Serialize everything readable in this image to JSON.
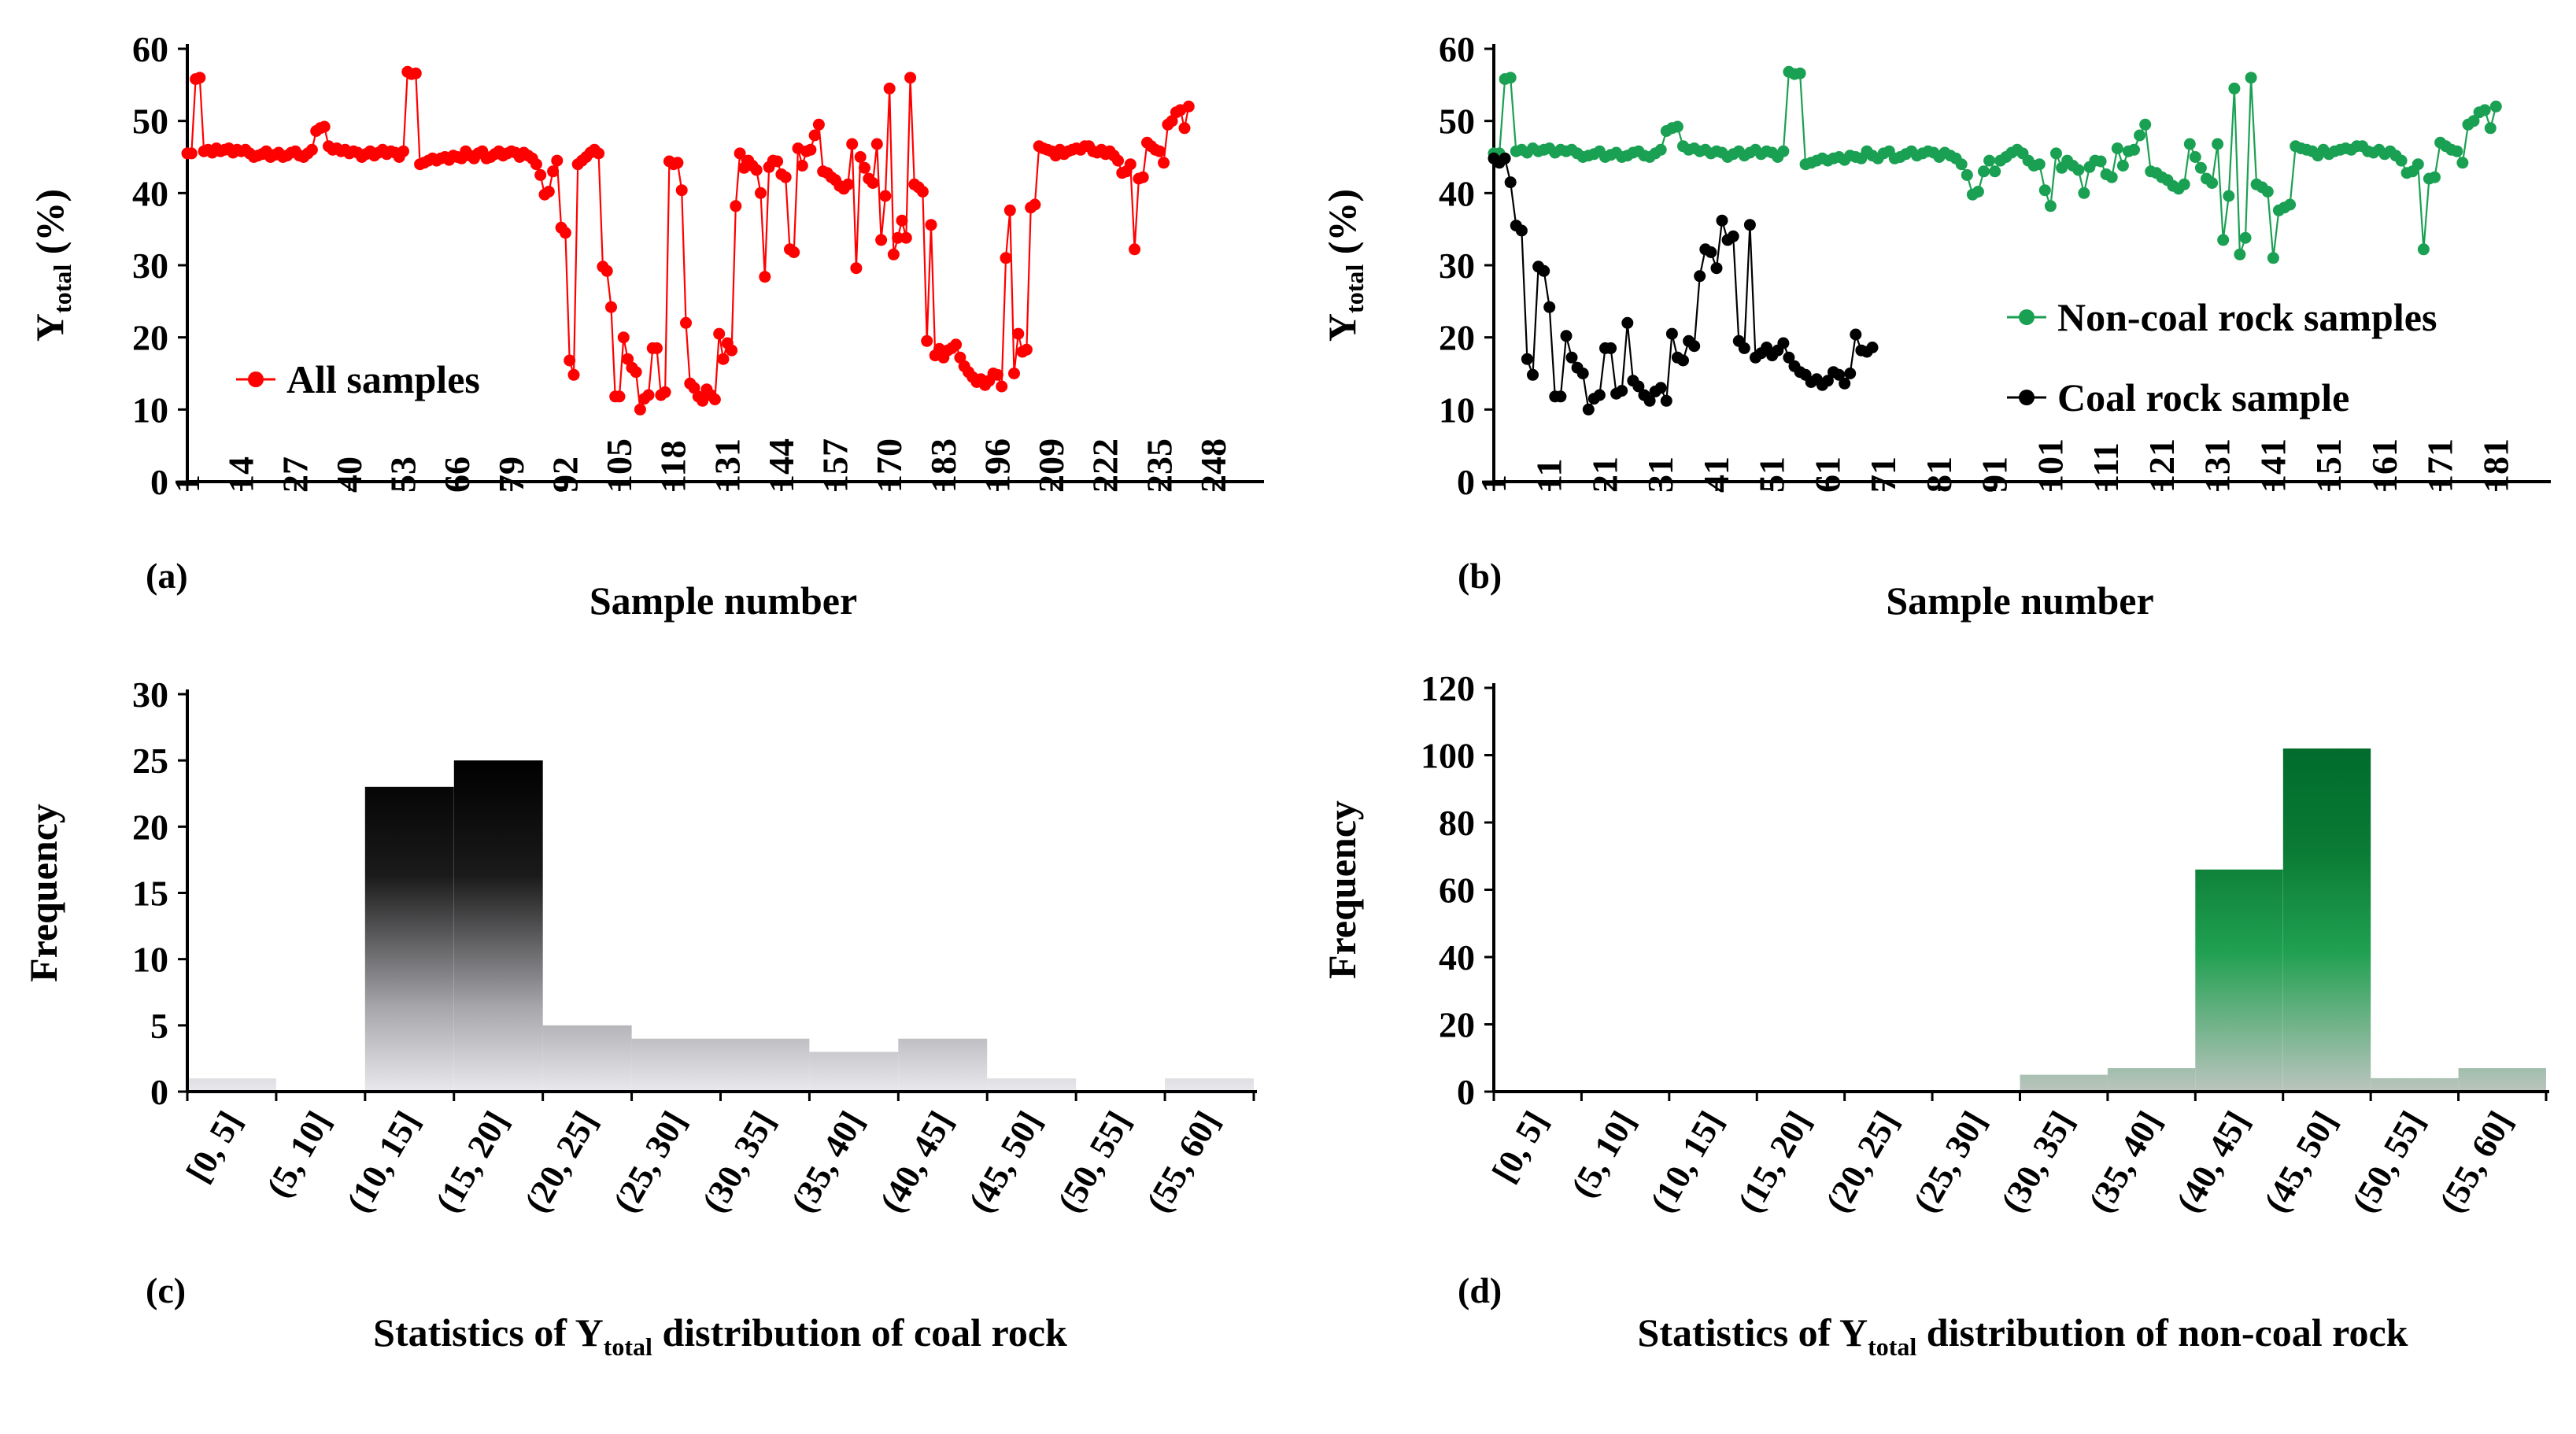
{
  "colors": {
    "red": "#ff0000",
    "green": "#1aa052",
    "black": "#000000",
    "dark_green": "#006b2d",
    "light_gray": "#e8e8ec",
    "gray_green": "#b9c4bd"
  },
  "chart_data": [
    {
      "id": "a",
      "type": "line",
      "panel_label": "(a)",
      "xlabel": "Sample number",
      "ylabel_main": "Y",
      "ylabel_sub": "total",
      "ylabel_unit": " (%)",
      "xlim": [
        1,
        259
      ],
      "ylim": [
        0,
        60
      ],
      "yticks": [
        "0",
        "10",
        "20",
        "30",
        "40",
        "50",
        "60"
      ],
      "xticks": [
        "1",
        "14",
        "27",
        "40",
        "53",
        "66",
        "79",
        "92",
        "105",
        "118",
        "131",
        "144",
        "157",
        "170",
        "183",
        "196",
        "209",
        "222",
        "235",
        "248"
      ],
      "xtick_values": [
        1,
        14,
        27,
        40,
        53,
        66,
        79,
        92,
        105,
        118,
        131,
        144,
        157,
        170,
        183,
        196,
        209,
        222,
        235,
        248
      ],
      "series": [
        {
          "name": "All samples",
          "color": "#ff0000",
          "values": [
            45.5,
            45.5,
            55.8,
            56,
            45.8,
            46,
            45.6,
            46.2,
            45.8,
            46,
            46.2,
            45.6,
            46,
            45.8,
            46,
            45.5,
            45,
            45.2,
            45.4,
            45.8,
            45,
            45.3,
            45.6,
            45,
            45.2,
            45.6,
            45.8,
            45.2,
            45,
            45.5,
            46,
            48.6,
            49,
            49.2,
            46.5,
            46,
            46.2,
            45.8,
            46,
            45.5,
            45.8,
            45.6,
            45,
            45.4,
            45.8,
            45.2,
            45.6,
            46,
            45.4,
            45.8,
            45.6,
            45,
            45.8,
            56.8,
            56.5,
            56.6,
            44,
            44.2,
            44.5,
            44.8,
            44.5,
            44.8,
            45,
            44.6,
            45.2,
            45,
            44.8,
            45.8,
            45.2,
            44.8,
            45.5,
            45.8,
            44.8,
            45,
            45.4,
            45.8,
            45.2,
            45.5,
            45.8,
            45.6,
            45,
            45.6,
            45.2,
            44.8,
            44,
            42.5,
            39.8,
            40.2,
            43,
            44.5,
            35.2,
            34.5,
            16.8,
            14.8,
            44,
            44.5,
            45,
            45.6,
            46,
            45.5,
            29.8,
            29.2,
            24.2,
            11.8,
            11.8,
            20,
            17,
            15.8,
            15.2,
            10,
            11.5,
            12,
            18.5,
            18.5,
            12,
            12.4,
            44.4,
            44,
            44.2,
            40.4,
            22,
            13.6,
            13,
            11.8,
            11.2,
            12.8,
            12,
            11.4,
            20.5,
            17,
            19.2,
            18.2,
            38.2,
            45.5,
            43.5,
            44.5,
            43.8,
            43.2,
            40,
            28.4,
            43.6,
            44.5,
            44.4,
            42.6,
            42.2,
            32.2,
            31.8,
            46.2,
            43.8,
            45.8,
            46,
            48,
            49.5,
            43,
            42.8,
            42.2,
            41.8,
            41,
            40.6,
            41.2,
            46.8,
            29.6,
            45,
            43.5,
            42,
            41.4,
            46.8,
            33.5,
            39.6,
            54.5,
            31.5,
            33.8,
            36.2,
            33.8,
            56,
            41.2,
            40.8,
            40.2,
            19.5,
            35.6,
            17.5,
            18.4,
            17.2,
            18.2,
            18.5,
            19,
            17.2,
            16,
            15.2,
            14.5,
            13.8,
            14.2,
            13.4,
            14,
            15,
            14.8,
            13.2,
            31,
            37.6,
            15,
            20.5,
            18,
            18.3,
            38,
            38.4,
            46.5,
            46.2,
            46,
            45.8,
            45.2,
            46,
            45.4,
            45.8,
            46,
            46.2,
            46,
            46.5,
            46.5,
            45.8,
            45.6,
            46,
            45.4,
            45.8,
            45.2,
            44.5,
            42.8,
            43,
            44,
            32.2,
            42,
            42.2,
            47,
            46.5,
            46,
            45.8,
            44.2,
            49.5,
            50,
            51.2,
            51.5,
            49,
            52
          ]
        }
      ]
    },
    {
      "id": "b",
      "type": "line",
      "panel_label": "(b)",
      "xlabel": "Sample number",
      "ylabel_main": "Y",
      "ylabel_sub": "total",
      "ylabel_unit": " (%)",
      "xlim": [
        1,
        190
      ],
      "ylim": [
        0,
        60
      ],
      "yticks": [
        "0",
        "10",
        "20",
        "30",
        "40",
        "50",
        "60"
      ],
      "xticks": [
        "1",
        "11",
        "21",
        "31",
        "41",
        "51",
        "61",
        "71",
        "81",
        "91",
        "101",
        "111",
        "121",
        "131",
        "141",
        "151",
        "161",
        "171",
        "181"
      ],
      "xtick_values": [
        1,
        11,
        21,
        31,
        41,
        51,
        61,
        71,
        81,
        91,
        101,
        111,
        121,
        131,
        141,
        151,
        161,
        171,
        181
      ],
      "series": [
        {
          "name": "Non-coal rock samples",
          "color": "#1aa052",
          "values": [
            45.5,
            45.5,
            55.8,
            56,
            45.8,
            46,
            45.6,
            46.2,
            45.8,
            46,
            46.2,
            45.6,
            46,
            45.8,
            46,
            45.5,
            45,
            45.2,
            45.4,
            45.8,
            45,
            45.3,
            45.6,
            45,
            45.2,
            45.6,
            45.8,
            45.2,
            45,
            45.5,
            46,
            48.6,
            49,
            49.2,
            46.5,
            46,
            46.2,
            45.8,
            46,
            45.5,
            45.8,
            45.6,
            45,
            45.4,
            45.8,
            45.2,
            45.6,
            46,
            45.4,
            45.8,
            45.6,
            45,
            45.8,
            56.8,
            56.5,
            56.6,
            44,
            44.2,
            44.5,
            44.8,
            44.5,
            44.8,
            45,
            44.6,
            45.2,
            45,
            44.8,
            45.8,
            45.2,
            44.8,
            45.5,
            45.8,
            44.8,
            45,
            45.4,
            45.8,
            45.2,
            45.5,
            45.8,
            45.6,
            45,
            45.6,
            45.2,
            44.8,
            44,
            42.5,
            39.8,
            40.2,
            43,
            44.5,
            43,
            44.5,
            45,
            45.6,
            46,
            45.5,
            44.5,
            43.8,
            44,
            40.4,
            38.2,
            45.5,
            43.5,
            44.5,
            43.8,
            43.2,
            40,
            43.6,
            44.5,
            44.4,
            42.6,
            42.2,
            46.2,
            43.8,
            45.8,
            46,
            48,
            49.5,
            43,
            42.8,
            42.2,
            41.8,
            41,
            40.6,
            41.2,
            46.8,
            45,
            43.5,
            42,
            41.4,
            46.8,
            33.5,
            39.6,
            54.5,
            31.5,
            33.8,
            56,
            41.2,
            40.8,
            40.2,
            31,
            37.6,
            38,
            38.4,
            46.5,
            46.2,
            46,
            45.8,
            45.2,
            46,
            45.4,
            45.8,
            46,
            46.2,
            46,
            46.5,
            46.5,
            45.8,
            45.6,
            46,
            45.4,
            45.8,
            45.2,
            44.5,
            42.8,
            43,
            44,
            32.2,
            42,
            42.2,
            47,
            46.5,
            46,
            45.8,
            44.2,
            49.5,
            50,
            51.2,
            51.5,
            49,
            52
          ]
        },
        {
          "name": "Coal rock sample",
          "color": "#000000",
          "values": [
            44.8,
            44.2,
            44.8,
            41.5,
            35.5,
            34.8,
            17,
            14.8,
            29.8,
            29.2,
            24.2,
            11.8,
            11.8,
            20.2,
            17.2,
            15.8,
            15,
            10,
            11.5,
            12,
            18.5,
            18.5,
            12.2,
            12.6,
            22,
            14,
            13.2,
            12,
            11.2,
            12.5,
            13,
            11.2,
            20.5,
            17.2,
            16.8,
            19.5,
            18.8,
            28.5,
            32.2,
            31.8,
            29.6,
            36.2,
            33.5,
            34,
            19.5,
            18.5,
            35.6,
            17.2,
            17.8,
            18.6,
            17.5,
            18.2,
            19.2,
            17.2,
            16,
            15.2,
            14.8,
            13.8,
            14.2,
            13.4,
            14,
            15.2,
            14.8,
            13.6,
            15,
            20.4,
            18.2,
            18,
            18.6
          ]
        }
      ]
    },
    {
      "id": "c",
      "type": "bar",
      "panel_label": "(c)",
      "xlabel_main": "Statistics of Y",
      "xlabel_sub": "total",
      "xlabel_rest": " distribution of coal rock",
      "ylabel": "Frequency",
      "ylim": [
        0,
        30
      ],
      "yticks": [
        "0",
        "5",
        "10",
        "15",
        "20",
        "25",
        "30"
      ],
      "categories": [
        "[0, 5]",
        "(5, 10]",
        "(10, 15]",
        "(15, 20]",
        "(20, 25]",
        "(25, 30]",
        "(30, 35]",
        "(35, 40]",
        "(40, 45]",
        "(45, 50]",
        "(50, 55]",
        "(55, 60]"
      ],
      "values": [
        1,
        0,
        23,
        25,
        5,
        4,
        4,
        3,
        4,
        1,
        0,
        1
      ],
      "fill": "gradient: black (top) to light gray (bottom)"
    },
    {
      "id": "d",
      "type": "bar",
      "panel_label": "(d)",
      "xlabel_main": "Statistics of Y",
      "xlabel_sub": "total",
      "xlabel_rest": " distribution of non-coal rock",
      "ylabel": "Frequency",
      "ylim": [
        0,
        120
      ],
      "yticks": [
        "0",
        "20",
        "40",
        "60",
        "80",
        "100",
        "120"
      ],
      "categories": [
        "[0, 5]",
        "(5, 10]",
        "(10, 15]",
        "(15, 20]",
        "(20, 25]",
        "(25, 30]",
        "(30, 35]",
        "(35, 40]",
        "(40, 45]",
        "(45, 50]",
        "(50, 55]",
        "(55, 60]"
      ],
      "values": [
        0,
        0,
        0,
        0,
        0,
        0,
        5,
        7,
        66,
        102,
        4,
        7
      ],
      "fill": "gradient: dark green (top) to gray-green (bottom)"
    }
  ]
}
